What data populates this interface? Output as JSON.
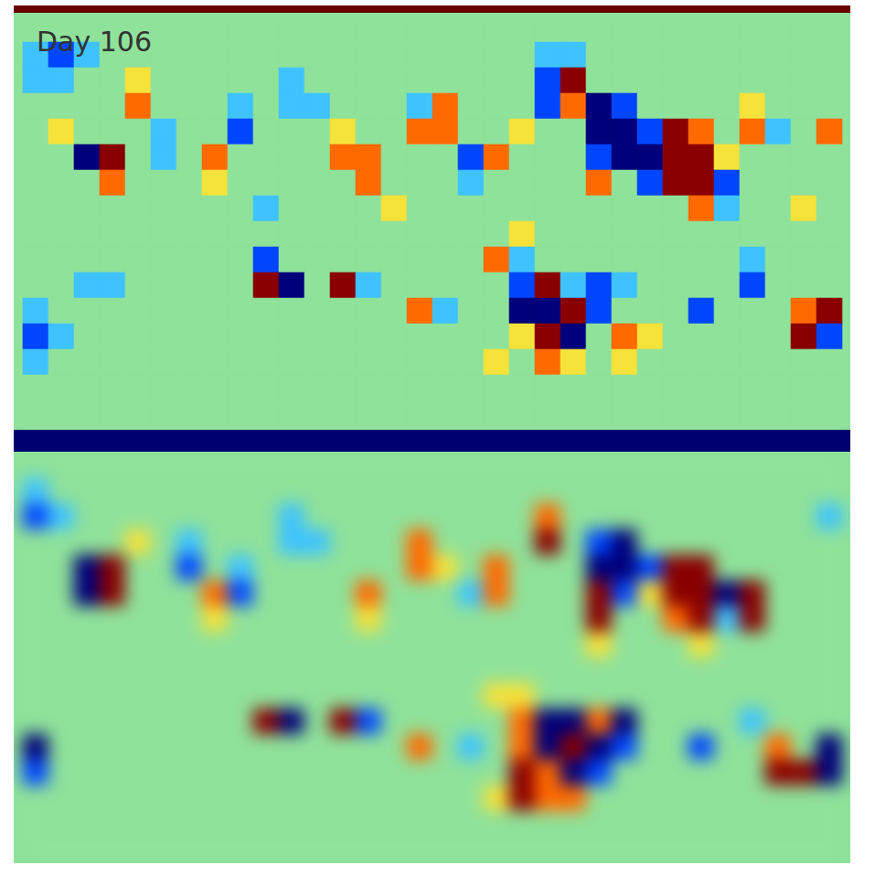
{
  "chart_data": [
    {
      "type": "heatmap",
      "title": "Day 106",
      "tick_labels": false,
      "zlim": [
        -3,
        3
      ],
      "cells": [
        [
          0,
          0,
          0,
          0,
          0,
          0,
          0,
          0,
          0,
          0,
          0,
          0,
          0,
          0,
          0,
          0,
          0,
          0,
          0,
          0,
          0,
          0,
          0,
          0,
          0,
          0,
          0,
          0,
          0,
          0,
          0,
          0
        ],
        [
          -1,
          -2,
          -1,
          0,
          0,
          0,
          0,
          0,
          0,
          0,
          0,
          0,
          0,
          0,
          0,
          0,
          0,
          0,
          0,
          0,
          -1,
          -1,
          0,
          0,
          0,
          0,
          0,
          0,
          0,
          0,
          0,
          0
        ],
        [
          -1,
          -1,
          0,
          0,
          1,
          0,
          0,
          0,
          0,
          0,
          -1,
          0,
          0,
          0,
          0,
          0,
          0,
          0,
          0,
          0,
          -2,
          3,
          0,
          0,
          0,
          0,
          0,
          0,
          0,
          0,
          0,
          0
        ],
        [
          0,
          0,
          0,
          0,
          2,
          0,
          0,
          0,
          -1,
          0,
          -1,
          -1,
          0,
          0,
          0,
          -1,
          2,
          0,
          0,
          0,
          -2,
          2,
          -3,
          -2,
          0,
          0,
          0,
          0,
          1,
          0,
          0,
          0
        ],
        [
          0,
          1,
          0,
          0,
          0,
          -1,
          0,
          0,
          -2,
          0,
          0,
          0,
          1,
          0,
          0,
          2,
          2,
          0,
          0,
          1,
          0,
          0,
          -3,
          -3,
          -2,
          3,
          2,
          0,
          2,
          -1,
          0,
          2
        ],
        [
          0,
          0,
          -3,
          3,
          0,
          -1,
          0,
          2,
          0,
          0,
          0,
          0,
          2,
          2,
          0,
          0,
          0,
          -2,
          2,
          0,
          0,
          0,
          -2,
          -3,
          -3,
          3,
          3,
          1,
          0,
          0,
          0,
          0
        ],
        [
          0,
          0,
          0,
          2,
          0,
          0,
          0,
          1,
          0,
          0,
          0,
          0,
          0,
          2,
          0,
          0,
          0,
          -1,
          0,
          0,
          0,
          0,
          2,
          0,
          -2,
          3,
          3,
          -2,
          0,
          0,
          0,
          0
        ],
        [
          0,
          0,
          0,
          0,
          0,
          0,
          0,
          0,
          0,
          -1,
          0,
          0,
          0,
          0,
          1,
          0,
          0,
          0,
          0,
          0,
          0,
          0,
          0,
          0,
          0,
          0,
          2,
          -1,
          0,
          0,
          1,
          0
        ],
        [
          0,
          0,
          0,
          0,
          0,
          0,
          0,
          0,
          0,
          0,
          0,
          0,
          0,
          0,
          0,
          0,
          0,
          0,
          0,
          1,
          0,
          0,
          0,
          0,
          0,
          0,
          0,
          0,
          0,
          0,
          0,
          0
        ],
        [
          0,
          0,
          0,
          0,
          0,
          0,
          0,
          0,
          0,
          -2,
          0,
          0,
          0,
          0,
          0,
          0,
          0,
          0,
          2,
          -1,
          0,
          0,
          0,
          0,
          0,
          0,
          0,
          0,
          -1,
          0,
          0,
          0
        ],
        [
          0,
          0,
          -1,
          -1,
          0,
          0,
          0,
          0,
          0,
          3,
          -3,
          0,
          3,
          -1,
          0,
          0,
          0,
          0,
          0,
          -2,
          3,
          -1,
          -2,
          -1,
          0,
          0,
          0,
          0,
          -2,
          0,
          0,
          0
        ],
        [
          -1,
          0,
          0,
          0,
          0,
          0,
          0,
          0,
          0,
          0,
          0,
          0,
          0,
          0,
          0,
          2,
          -1,
          0,
          0,
          -3,
          -3,
          3,
          -2,
          0,
          0,
          0,
          -2,
          0,
          0,
          0,
          2,
          3
        ],
        [
          -2,
          -1,
          0,
          0,
          0,
          0,
          0,
          0,
          0,
          0,
          0,
          0,
          0,
          0,
          0,
          0,
          0,
          0,
          0,
          1,
          3,
          -3,
          0,
          2,
          1,
          0,
          0,
          0,
          0,
          0,
          3,
          -2
        ],
        [
          -1,
          0,
          0,
          0,
          0,
          0,
          0,
          0,
          0,
          0,
          0,
          0,
          0,
          0,
          0,
          0,
          0,
          0,
          1,
          0,
          2,
          1,
          0,
          1,
          0,
          0,
          0,
          0,
          0,
          0,
          0,
          0
        ],
        [
          0,
          0,
          0,
          0,
          0,
          0,
          0,
          0,
          0,
          0,
          0,
          0,
          0,
          0,
          0,
          0,
          0,
          0,
          0,
          0,
          0,
          0,
          0,
          0,
          0,
          0,
          0,
          0,
          0,
          0,
          0,
          0
        ],
        [
          0,
          0,
          0,
          0,
          0,
          0,
          0,
          0,
          0,
          0,
          0,
          0,
          0,
          0,
          0,
          0,
          0,
          0,
          0,
          0,
          0,
          0,
          0,
          0,
          0,
          0,
          0,
          0,
          0,
          0,
          0,
          0
        ]
      ]
    },
    {
      "type": "heatmap",
      "tick_labels": false,
      "zlim": [
        -3,
        3
      ],
      "cells": [
        [
          0,
          0,
          0,
          0,
          0,
          0,
          0,
          0,
          0,
          0,
          0,
          0,
          0,
          0,
          0,
          0,
          0,
          0,
          0,
          0,
          0,
          0,
          0,
          0,
          0,
          0,
          0,
          0,
          0,
          0,
          0,
          0
        ],
        [
          -1,
          0,
          0,
          0,
          0,
          0,
          0,
          0,
          0,
          0,
          0,
          0,
          0,
          0,
          0,
          0,
          0,
          0,
          0,
          0,
          0,
          0,
          0,
          0,
          0,
          0,
          0,
          0,
          0,
          0,
          0,
          0
        ],
        [
          -2,
          -1,
          0,
          0,
          0,
          0,
          0,
          0,
          0,
          0,
          -1,
          0,
          0,
          0,
          0,
          0,
          0,
          0,
          0,
          0,
          2,
          0,
          0,
          0,
          0,
          0,
          0,
          0,
          0,
          0,
          0,
          -1
        ],
        [
          0,
          0,
          0,
          0,
          1,
          0,
          -1,
          0,
          0,
          0,
          -1,
          -1,
          0,
          0,
          0,
          2,
          0,
          0,
          0,
          0,
          3,
          0,
          -2,
          -3,
          0,
          0,
          0,
          0,
          0,
          0,
          0,
          0
        ],
        [
          0,
          0,
          -3,
          3,
          0,
          0,
          -2,
          0,
          -1,
          0,
          0,
          0,
          0,
          0,
          0,
          2,
          1,
          0,
          2,
          0,
          0,
          0,
          -3,
          -3,
          -2,
          3,
          3,
          0,
          0,
          0,
          0,
          0
        ],
        [
          0,
          0,
          -3,
          3,
          0,
          0,
          0,
          2,
          -2,
          0,
          0,
          0,
          0,
          2,
          0,
          0,
          0,
          -1,
          2,
          0,
          0,
          0,
          3,
          -2,
          1,
          3,
          3,
          -3,
          3,
          0,
          0,
          0
        ],
        [
          0,
          0,
          0,
          0,
          0,
          0,
          0,
          1,
          0,
          0,
          0,
          0,
          0,
          1,
          0,
          0,
          0,
          0,
          0,
          0,
          0,
          0,
          3,
          0,
          0,
          2,
          3,
          -1,
          3,
          0,
          0,
          0
        ],
        [
          0,
          0,
          0,
          0,
          0,
          0,
          0,
          0,
          0,
          0,
          0,
          0,
          0,
          0,
          0,
          0,
          0,
          0,
          0,
          0,
          0,
          0,
          1,
          0,
          0,
          0,
          1,
          0,
          0,
          0,
          0,
          0
        ],
        [
          0,
          0,
          0,
          0,
          0,
          0,
          0,
          0,
          0,
          0,
          0,
          0,
          0,
          0,
          0,
          0,
          0,
          0,
          0,
          0,
          0,
          0,
          0,
          0,
          0,
          0,
          0,
          0,
          0,
          0,
          0,
          0
        ],
        [
          0,
          0,
          0,
          0,
          0,
          0,
          0,
          0,
          0,
          0,
          0,
          0,
          0,
          0,
          0,
          0,
          0,
          0,
          1,
          1,
          0,
          0,
          0,
          0,
          0,
          0,
          0,
          0,
          0,
          0,
          0,
          0
        ],
        [
          0,
          0,
          0,
          0,
          0,
          0,
          0,
          0,
          0,
          3,
          -3,
          0,
          3,
          -2,
          0,
          0,
          0,
          0,
          0,
          2,
          -3,
          -3,
          2,
          -3,
          0,
          0,
          0,
          0,
          -1,
          0,
          0,
          0
        ],
        [
          -3,
          0,
          0,
          0,
          0,
          0,
          0,
          0,
          0,
          0,
          0,
          0,
          0,
          0,
          0,
          2,
          0,
          -1,
          0,
          2,
          -3,
          3,
          -3,
          -2,
          0,
          0,
          -2,
          0,
          0,
          2,
          0,
          -3
        ],
        [
          -2,
          0,
          0,
          0,
          0,
          0,
          0,
          0,
          0,
          0,
          0,
          0,
          0,
          0,
          0,
          0,
          0,
          0,
          0,
          3,
          2,
          -3,
          -2,
          0,
          0,
          0,
          0,
          0,
          0,
          3,
          3,
          -3
        ],
        [
          0,
          0,
          0,
          0,
          0,
          0,
          0,
          0,
          0,
          0,
          0,
          0,
          0,
          0,
          0,
          0,
          0,
          0,
          1,
          3,
          2,
          2,
          0,
          0,
          0,
          0,
          0,
          0,
          0,
          0,
          0,
          0
        ],
        [
          0,
          0,
          0,
          0,
          0,
          0,
          0,
          0,
          0,
          0,
          0,
          0,
          0,
          0,
          0,
          0,
          0,
          0,
          0,
          0,
          0,
          0,
          0,
          0,
          0,
          0,
          0,
          0,
          0,
          0,
          0,
          0
        ],
        [
          0,
          0,
          0,
          0,
          0,
          0,
          0,
          0,
          0,
          0,
          0,
          0,
          0,
          0,
          0,
          0,
          0,
          0,
          0,
          0,
          0,
          0,
          0,
          0,
          0,
          0,
          0,
          0,
          0,
          0,
          0,
          0
        ]
      ]
    }
  ]
}
